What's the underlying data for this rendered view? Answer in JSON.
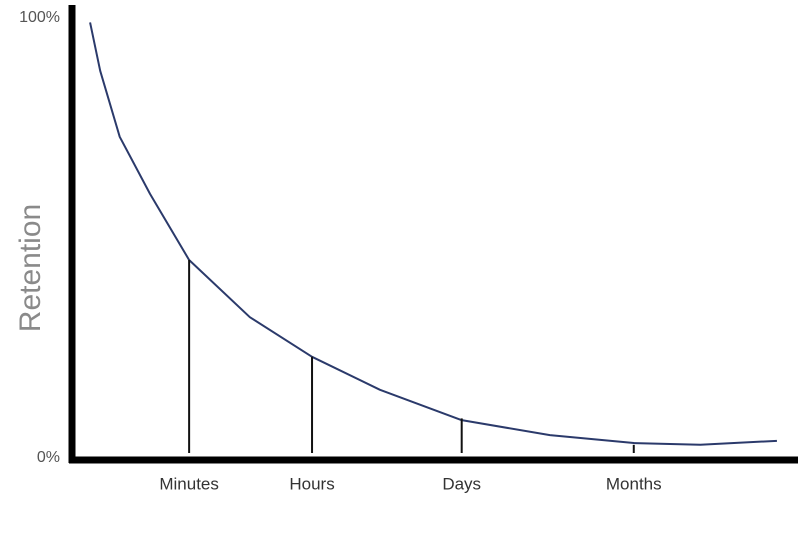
{
  "chart_data": {
    "type": "line",
    "ylabel": "Retention",
    "ylim": [
      0,
      100
    ],
    "yticks": [
      {
        "value": 0,
        "label": "0%"
      },
      {
        "value": 100,
        "label": "100%"
      }
    ],
    "xlim": [
      0,
      100
    ],
    "x": [
      2.5,
      3.9,
      6.6,
      10.8,
      16.2,
      24.6,
      33.2,
      42.6,
      53.9,
      66.1,
      77.7,
      86.9,
      97.5
    ],
    "series": [
      {
        "color": "#2b3a6b",
        "values": [
          99,
          88,
          73,
          60,
          45,
          32,
          23,
          15.5,
          8.6,
          5.2,
          3.4,
          3,
          3.9
        ]
      }
    ],
    "markers": {
      "categories": [
        "Minutes",
        "Hours",
        "Days",
        "Months"
      ],
      "x": [
        16.2,
        33.2,
        53.9,
        77.7
      ],
      "values": [
        45,
        23,
        9,
        3
      ]
    }
  }
}
